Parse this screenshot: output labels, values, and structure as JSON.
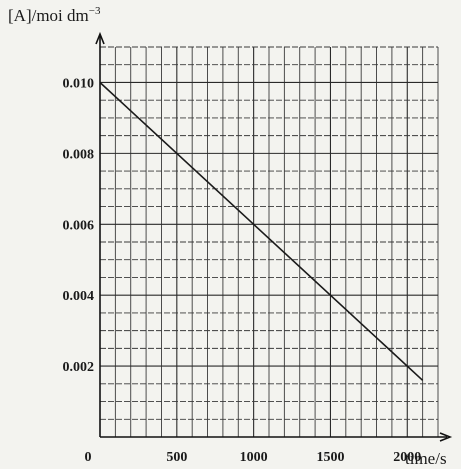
{
  "chart_data": {
    "type": "line",
    "ylabel_main": "[A]/moi dm",
    "ylabel_sup": "−3",
    "xlabel": "time/s",
    "xlim": [
      0,
      2200
    ],
    "ylim": [
      0,
      0.011
    ],
    "grid": true,
    "x_ticks": [
      {
        "value": 0,
        "label": "0"
      },
      {
        "value": 500,
        "label": "500"
      },
      {
        "value": 1000,
        "label": "1000"
      },
      {
        "value": 1500,
        "label": "1500"
      },
      {
        "value": 2000,
        "label": "2000"
      }
    ],
    "y_ticks": [
      {
        "value": 0.002,
        "label": "0.002"
      },
      {
        "value": 0.004,
        "label": "0.004"
      },
      {
        "value": 0.006,
        "label": "0.006"
      },
      {
        "value": 0.008,
        "label": "0.008"
      },
      {
        "value": 0.01,
        "label": "0.010"
      }
    ],
    "series": [
      {
        "x": [
          0,
          2100
        ],
        "y": [
          0.01,
          0.0016
        ]
      }
    ]
  }
}
